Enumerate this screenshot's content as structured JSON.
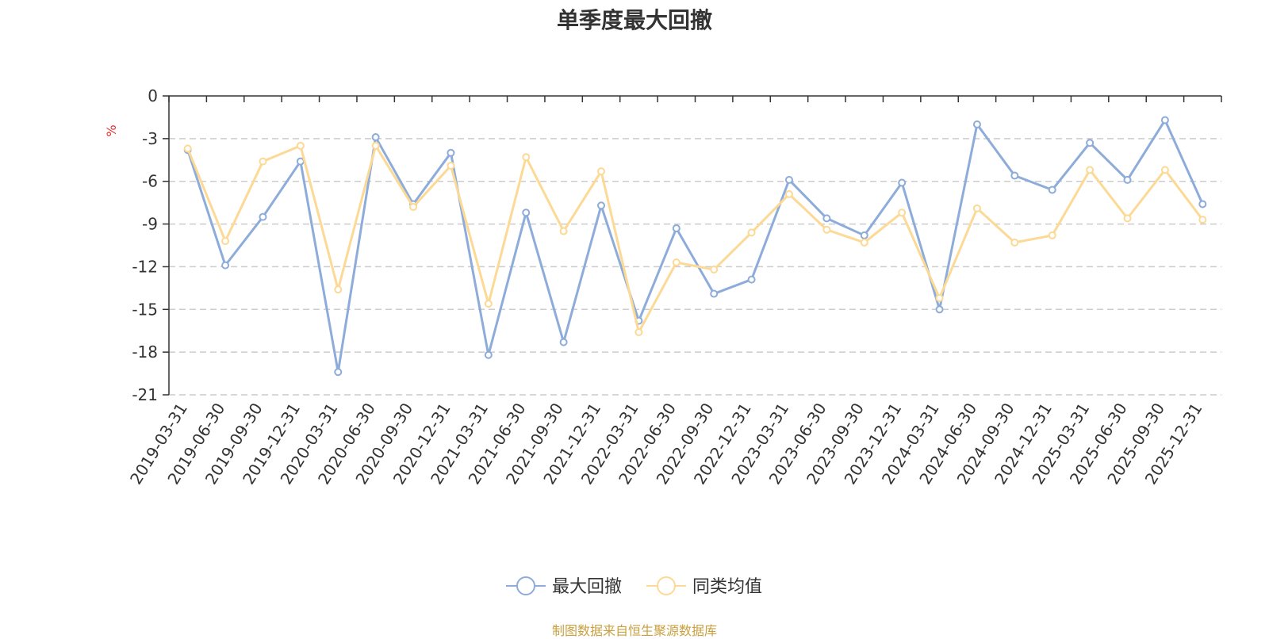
{
  "chart_data": {
    "type": "line",
    "title": "单季度最大回撤",
    "ylabel": "%",
    "ylim": [
      -21,
      0
    ],
    "yticks": [
      0,
      -3,
      -6,
      -9,
      -12,
      -15,
      -18,
      -21
    ],
    "grid": true,
    "legend_position": "bottom-center",
    "categories": [
      "2019-03-31",
      "2019-06-30",
      "2019-09-30",
      "2019-12-31",
      "2020-03-31",
      "2020-06-30",
      "2020-09-30",
      "2020-12-31",
      "2021-03-31",
      "2021-06-30",
      "2021-09-30",
      "2021-12-31",
      "2022-03-31",
      "2022-06-30",
      "2022-09-30",
      "2022-12-31",
      "2023-03-31",
      "2023-06-30",
      "2023-09-30",
      "2023-12-31",
      "2024-03-31",
      "2024-06-30",
      "2024-09-30",
      "2024-12-31",
      "2025-03-31",
      "2025-06-30",
      "2025-09-30",
      "2025-12-31"
    ],
    "series": [
      {
        "name": "最大回撤",
        "color": "#8eacda",
        "values": [
          -3.8,
          -11.9,
          -8.5,
          -4.6,
          -19.4,
          -2.9,
          -7.6,
          -4.0,
          -18.2,
          -8.2,
          -17.3,
          -7.7,
          -15.8,
          -9.3,
          -13.9,
          -12.9,
          -5.9,
          -8.6,
          -9.8,
          -6.1,
          -15.0,
          -2.0,
          -5.6,
          -6.6,
          -3.3,
          -5.9,
          -1.7,
          -7.6
        ]
      },
      {
        "name": "同类均值",
        "color": "#fcd995",
        "values": [
          -3.7,
          -10.2,
          -4.6,
          -3.5,
          -13.6,
          -3.5,
          -7.8,
          -4.9,
          -14.6,
          -4.3,
          -9.5,
          -5.3,
          -16.6,
          -11.7,
          -12.2,
          -9.6,
          -6.9,
          -9.4,
          -10.3,
          -8.2,
          -14.2,
          -7.9,
          -10.3,
          -9.8,
          -5.2,
          -8.6,
          -5.2,
          -8.7
        ]
      }
    ]
  },
  "source_note": "制图数据来自恒生聚源数据库"
}
